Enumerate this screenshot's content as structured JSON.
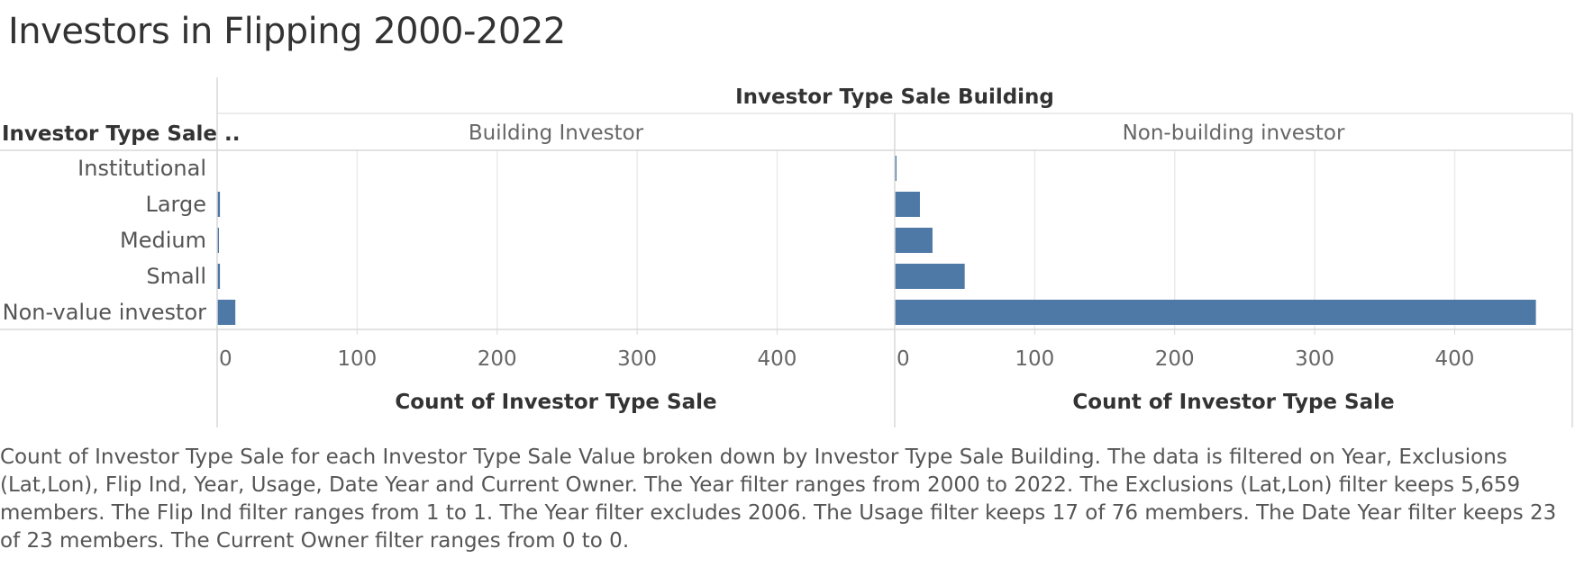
{
  "title": "Investors in Flipping 2000-2022",
  "column_header_title": "Investor Type Sale Building",
  "row_header_title": "Investor Type Sale ..",
  "caption": "Count of Investor Type Sale for each Investor Type Sale Value broken down by Investor Type Sale Building. The data is filtered on Year, Exclusions (Lat,Lon), Flip Ind, Year, Usage, Date Year and Current Owner. The Year filter ranges from 2000 to 2022. The Exclusions (Lat,Lon) filter keeps 5,659 members. The Flip Ind filter ranges from 1 to 1. The Year filter excludes 2006. The Usage filter keeps 17 of 76 members. The Date Year filter keeps 23 of 23 members. The Current Owner filter ranges from 0 to 0.",
  "colors": {
    "bar": "#4e79a7",
    "grid": "#ebebeb",
    "rule": "#d9d9d9"
  },
  "chart_data": {
    "type": "bar",
    "orientation": "horizontal",
    "categories": [
      "Institutional",
      "Large",
      "Medium",
      "Small",
      "Non-value investor"
    ],
    "panels": [
      {
        "name": "Building Investor",
        "values": [
          0,
          2,
          1,
          2,
          13
        ],
        "xlabel": "Count of Investor Type Sale",
        "xlim": [
          0,
          484
        ],
        "ticks": [
          0,
          100,
          200,
          300,
          400
        ]
      },
      {
        "name": "Non-building investor",
        "values": [
          1,
          18,
          27,
          50,
          458
        ],
        "xlabel": "Count of Investor Type Sale",
        "xlim": [
          0,
          484
        ],
        "ticks": [
          0,
          100,
          200,
          300,
          400
        ]
      }
    ],
    "grid": true
  }
}
